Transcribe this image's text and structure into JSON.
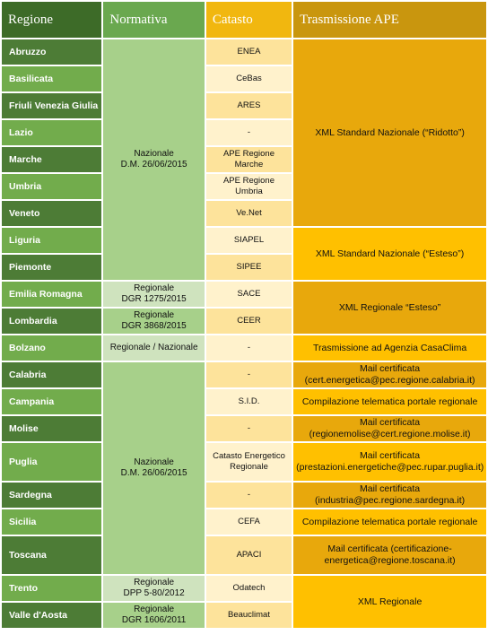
{
  "headers": {
    "regione": "Regione",
    "normativa": "Normativa",
    "catasto": "Catasto",
    "trasmissione": "Trasmissione APE"
  },
  "rows": [
    {
      "regione": "Abruzzo",
      "catasto": "ENEA"
    },
    {
      "regione": "Basilicata",
      "catasto": "CeBas"
    },
    {
      "regione": "Friuli Venezia Giulia",
      "catasto": "ARES"
    },
    {
      "regione": "Lazio",
      "catasto": "-"
    },
    {
      "regione": "Marche",
      "catasto": "APE Regione Marche"
    },
    {
      "regione": "Umbria",
      "catasto": "APE Regione Umbria"
    },
    {
      "regione": "Veneto",
      "catasto": "Ve.Net"
    },
    {
      "regione": "Liguria",
      "catasto": "SIAPEL"
    },
    {
      "regione": "Piemonte",
      "catasto": "SIPEE"
    },
    {
      "regione": "Emilia Romagna",
      "catasto": "SACE"
    },
    {
      "regione": "Lombardia",
      "catasto": "CEER"
    },
    {
      "regione": "Bolzano",
      "catasto": "-"
    },
    {
      "regione": "Calabria",
      "catasto": "-"
    },
    {
      "regione": "Campania",
      "catasto": "S.I.D."
    },
    {
      "regione": "Molise",
      "catasto": "-"
    },
    {
      "regione": "Puglia",
      "catasto": "Catasto Energetico Regionale"
    },
    {
      "regione": "Sardegna",
      "catasto": "-"
    },
    {
      "regione": "Sicilia",
      "catasto": "CEFA"
    },
    {
      "regione": "Toscana",
      "catasto": "APACI"
    },
    {
      "regione": "Trento",
      "catasto": "Odatech"
    },
    {
      "regione": "Valle d'Aosta",
      "catasto": "Beauclimat"
    }
  ],
  "normativa": {
    "nazionale_1": {
      "line1": "Nazionale",
      "line2": "D.M. 26/06/2015"
    },
    "emilia": {
      "line1": "Regionale",
      "line2": "DGR 1275/2015"
    },
    "lombardia": {
      "line1": "Regionale",
      "line2": "DGR 3868/2015"
    },
    "bolzano": "Regionale / Nazionale",
    "nazionale_2": {
      "line1": "Nazionale",
      "line2": "D.M. 26/06/2015"
    },
    "trento": {
      "line1": "Regionale",
      "line2": "DPP 5-80/2012"
    },
    "aosta": {
      "line1": "Regionale",
      "line2": "DGR 1606/2011"
    }
  },
  "trasmissione": {
    "ridotto": "XML Standard Nazionale (“Ridotto”)",
    "esteso": "XML Standard Nazionale (“Esteso”)",
    "regionale_esteso": "XML Regionale “Esteso”",
    "bolzano": "Trasmissione ad Agenzia CasaClima",
    "calabria": "Mail certificata (cert.energetica@pec.regione.calabria.it)",
    "campania": "Compilazione telematica portale regionale",
    "molise": "Mail certificata (regionemolise@cert.regione.molise.it)",
    "puglia": "Mail certificata (prestazioni.energetiche@pec.rupar.puglia.it)",
    "sardegna": "Mail certificata (industria@pec.regione.sardegna.it)",
    "sicilia": "Compilazione telematica portale regionale",
    "toscana": "Mail certificata (certificazione-energetica@regione.toscana.it)",
    "xml_regionale": "XML Regionale"
  },
  "colors": {
    "header_regione": "#3d6b28",
    "header_normativa": "#6aa84f",
    "header_catasto": "#f1b70f",
    "header_trasmissione": "#c9960e"
  }
}
